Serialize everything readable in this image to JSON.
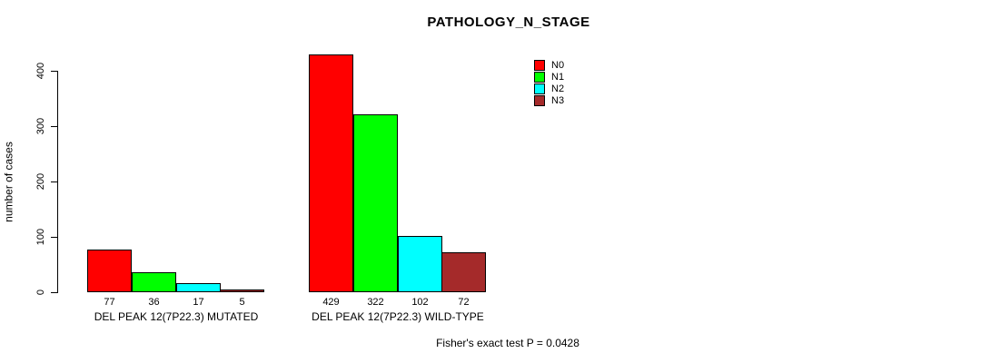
{
  "chart_data": {
    "type": "bar",
    "title": "PATHOLOGY_N_STAGE",
    "xlabel": "",
    "ylabel": "number of cases",
    "ylim": [
      0,
      400
    ],
    "yticks": [
      0,
      100,
      200,
      300,
      400
    ],
    "grid": false,
    "legend_position": "top-right",
    "categories": [
      "DEL PEAK 12(7P22.3) MUTATED",
      "DEL PEAK 12(7P22.3) WILD-TYPE"
    ],
    "series": [
      {
        "name": "N0",
        "color": "#ff0000",
        "values": [
          77,
          429
        ]
      },
      {
        "name": "N1",
        "color": "#00ff00",
        "values": [
          36,
          322
        ]
      },
      {
        "name": "N2",
        "color": "#00ffff",
        "values": [
          17,
          102
        ]
      },
      {
        "name": "N3",
        "color": "#a52a2a",
        "values": [
          5,
          72
        ]
      }
    ],
    "bar_value_labels": [
      [
        77,
        36,
        17,
        5
      ],
      [
        429,
        322,
        102,
        72
      ]
    ],
    "annotation": "Fisher's exact test P = 0.0428"
  }
}
